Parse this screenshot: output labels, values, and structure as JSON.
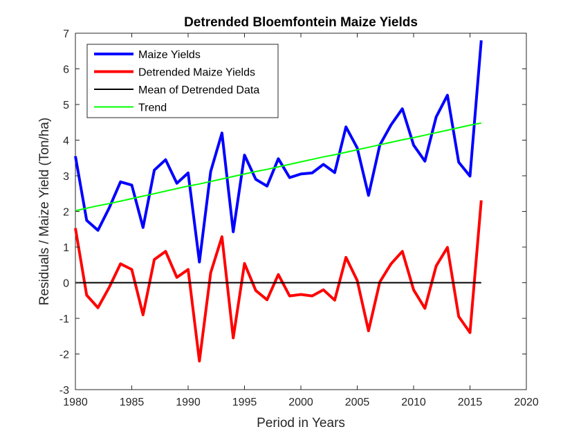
{
  "chart_data": {
    "type": "line",
    "title": "Detrended Bloemfontein Maize Yields",
    "xlabel": "Period in Years",
    "ylabel": "Residuals / Maize Yield (Ton/ha)",
    "xlim": [
      1980,
      2020
    ],
    "ylim": [
      -3,
      7
    ],
    "xticks": [
      1980,
      1985,
      1990,
      1995,
      2000,
      2005,
      2010,
      2015,
      2020
    ],
    "yticks": [
      -3,
      -2,
      -1,
      0,
      1,
      2,
      3,
      4,
      5,
      6,
      7
    ],
    "grid": false,
    "legend_position": "top-left",
    "x": [
      1980,
      1981,
      1982,
      1983,
      1984,
      1985,
      1986,
      1987,
      1988,
      1989,
      1990,
      1991,
      1992,
      1993,
      1994,
      1995,
      1996,
      1997,
      1998,
      1999,
      2000,
      2001,
      2002,
      2003,
      2004,
      2005,
      2006,
      2007,
      2008,
      2009,
      2010,
      2011,
      2012,
      2013,
      2014,
      2015,
      2016
    ],
    "series": [
      {
        "name": "Maize Yields",
        "color": "#0000ff",
        "width": 4,
        "values": [
          3.55,
          1.75,
          1.47,
          2.1,
          2.83,
          2.74,
          1.55,
          3.16,
          3.45,
          2.79,
          3.08,
          0.58,
          3.12,
          4.2,
          1.43,
          3.58,
          2.9,
          2.71,
          3.48,
          2.95,
          3.05,
          3.08,
          3.32,
          3.09,
          4.37,
          3.78,
          2.45,
          3.86,
          4.43,
          4.88,
          3.86,
          3.41,
          4.65,
          5.26,
          3.38,
          2.99,
          6.8
        ]
      },
      {
        "name": "Detrended Maize Yields",
        "color": "#ff0000",
        "width": 4,
        "values": [
          1.53,
          -0.35,
          -0.7,
          -0.13,
          0.53,
          0.37,
          -0.9,
          0.65,
          0.88,
          0.15,
          0.37,
          -2.2,
          0.28,
          1.29,
          -1.55,
          0.54,
          -0.22,
          -0.48,
          0.23,
          -0.37,
          -0.33,
          -0.37,
          -0.2,
          -0.49,
          0.71,
          0.06,
          -1.35,
          0.02,
          0.53,
          0.88,
          -0.2,
          -0.72,
          0.47,
          0.99,
          -0.95,
          -1.4,
          2.31
        ]
      },
      {
        "name": "Mean of Detrended Data",
        "color": "#000000",
        "width": 2,
        "values": [
          0,
          0,
          0,
          0,
          0,
          0,
          0,
          0,
          0,
          0,
          0,
          0,
          0,
          0,
          0,
          0,
          0,
          0,
          0,
          0,
          0,
          0,
          0,
          0,
          0,
          0,
          0,
          0,
          0,
          0,
          0,
          0,
          0,
          0,
          0,
          0,
          0
        ]
      },
      {
        "name": "Trend",
        "color": "#00ff00",
        "width": 2,
        "values": [
          2.02,
          2.09,
          2.16,
          2.22,
          2.29,
          2.36,
          2.43,
          2.5,
          2.57,
          2.64,
          2.71,
          2.77,
          2.84,
          2.91,
          2.98,
          3.05,
          3.12,
          3.18,
          3.25,
          3.32,
          3.39,
          3.46,
          3.53,
          3.59,
          3.66,
          3.73,
          3.8,
          3.87,
          3.94,
          4.01,
          4.07,
          4.14,
          4.21,
          4.28,
          4.35,
          4.42,
          4.48
        ]
      }
    ]
  }
}
